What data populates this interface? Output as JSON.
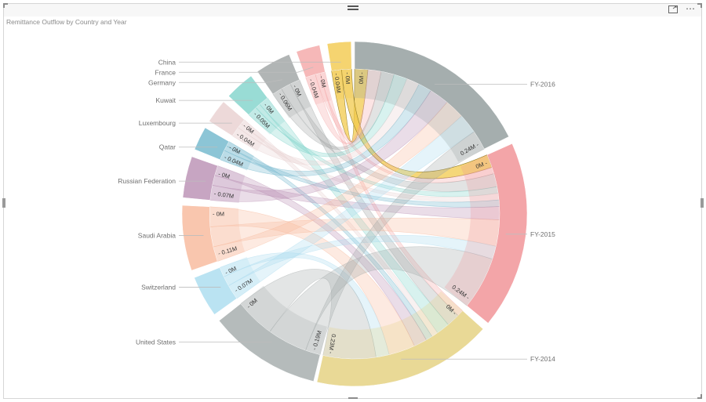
{
  "visual": {
    "title": "Remittance Outflow by Country and Year",
    "focus_mode_label": "Focus mode",
    "more_options_label": "⋯"
  },
  "chart_data": {
    "type": "chord",
    "title": "Remittance Outflow by Country and Year",
    "unit": "M",
    "sources": [
      {
        "name": "China",
        "total": 0.04,
        "color": "#f2c94c",
        "ticks": [
          "0M",
          "0.04M"
        ]
      },
      {
        "name": "France",
        "total": 0.04,
        "color": "#f4a6a6",
        "ticks": [
          "0M",
          "0.04M"
        ]
      },
      {
        "name": "Germany",
        "total": 0.06,
        "color": "#9ea3a3",
        "ticks": [
          "0M",
          "0.06M"
        ]
      },
      {
        "name": "Kuwait",
        "total": 0.05,
        "color": "#7fd3cb",
        "ticks": [
          "0M",
          "0.05M"
        ]
      },
      {
        "name": "Luxembourg",
        "total": 0.04,
        "color": "#e8cfd0",
        "ticks": [
          "0M",
          "0.04M"
        ]
      },
      {
        "name": "Qatar",
        "total": 0.04,
        "color": "#6fb6cc",
        "ticks": [
          "0M",
          "0.04M"
        ]
      },
      {
        "name": "Russian Federation",
        "total": 0.07,
        "color": "#b98fb3",
        "ticks": [
          "0M",
          "0.07M"
        ]
      },
      {
        "name": "Saudi Arabia",
        "total": 0.11,
        "color": "#f7b89a",
        "ticks": [
          "0M",
          "0.11M"
        ]
      },
      {
        "name": "Switzerland",
        "total": 0.07,
        "color": "#a9dcef",
        "ticks": [
          "0M",
          "0.07M"
        ]
      },
      {
        "name": "United States",
        "total": 0.19,
        "color": "#a3aaaa",
        "ticks": [
          "0M",
          "0.19M"
        ]
      }
    ],
    "targets": [
      {
        "name": "FY-2014",
        "total": 0.23,
        "color": "#e3cf7c",
        "ticks": [
          "0M",
          "0.23M"
        ]
      },
      {
        "name": "FY-2015",
        "total": 0.24,
        "color": "#f08f92",
        "ticks": [
          "0M",
          "0.24M"
        ]
      },
      {
        "name": "FY-2016",
        "total": 0.24,
        "color": "#8e9a9a",
        "ticks": [
          "0M",
          "0.24M"
        ]
      }
    ],
    "flows": [
      {
        "source": "China",
        "FY-2014": 0.0,
        "FY-2015": 0.02,
        "FY-2016": 0.02
      },
      {
        "source": "France",
        "FY-2014": 0.01,
        "FY-2015": 0.01,
        "FY-2016": 0.02
      },
      {
        "source": "Germany",
        "FY-2014": 0.02,
        "FY-2015": 0.02,
        "FY-2016": 0.02
      },
      {
        "source": "Kuwait",
        "FY-2014": 0.02,
        "FY-2015": 0.01,
        "FY-2016": 0.02
      },
      {
        "source": "Luxembourg",
        "FY-2014": 0.01,
        "FY-2015": 0.01,
        "FY-2016": 0.02
      },
      {
        "source": "Qatar",
        "FY-2014": 0.01,
        "FY-2015": 0.01,
        "FY-2016": 0.02
      },
      {
        "source": "Russian Federation",
        "FY-2014": 0.02,
        "FY-2015": 0.02,
        "FY-2016": 0.03
      },
      {
        "source": "Saudi Arabia",
        "FY-2014": 0.04,
        "FY-2015": 0.04,
        "FY-2016": 0.03
      },
      {
        "source": "Switzerland",
        "FY-2014": 0.02,
        "FY-2015": 0.02,
        "FY-2016": 0.03
      },
      {
        "source": "United States",
        "FY-2014": 0.08,
        "FY-2015": 0.08,
        "FY-2016": 0.03
      }
    ]
  }
}
